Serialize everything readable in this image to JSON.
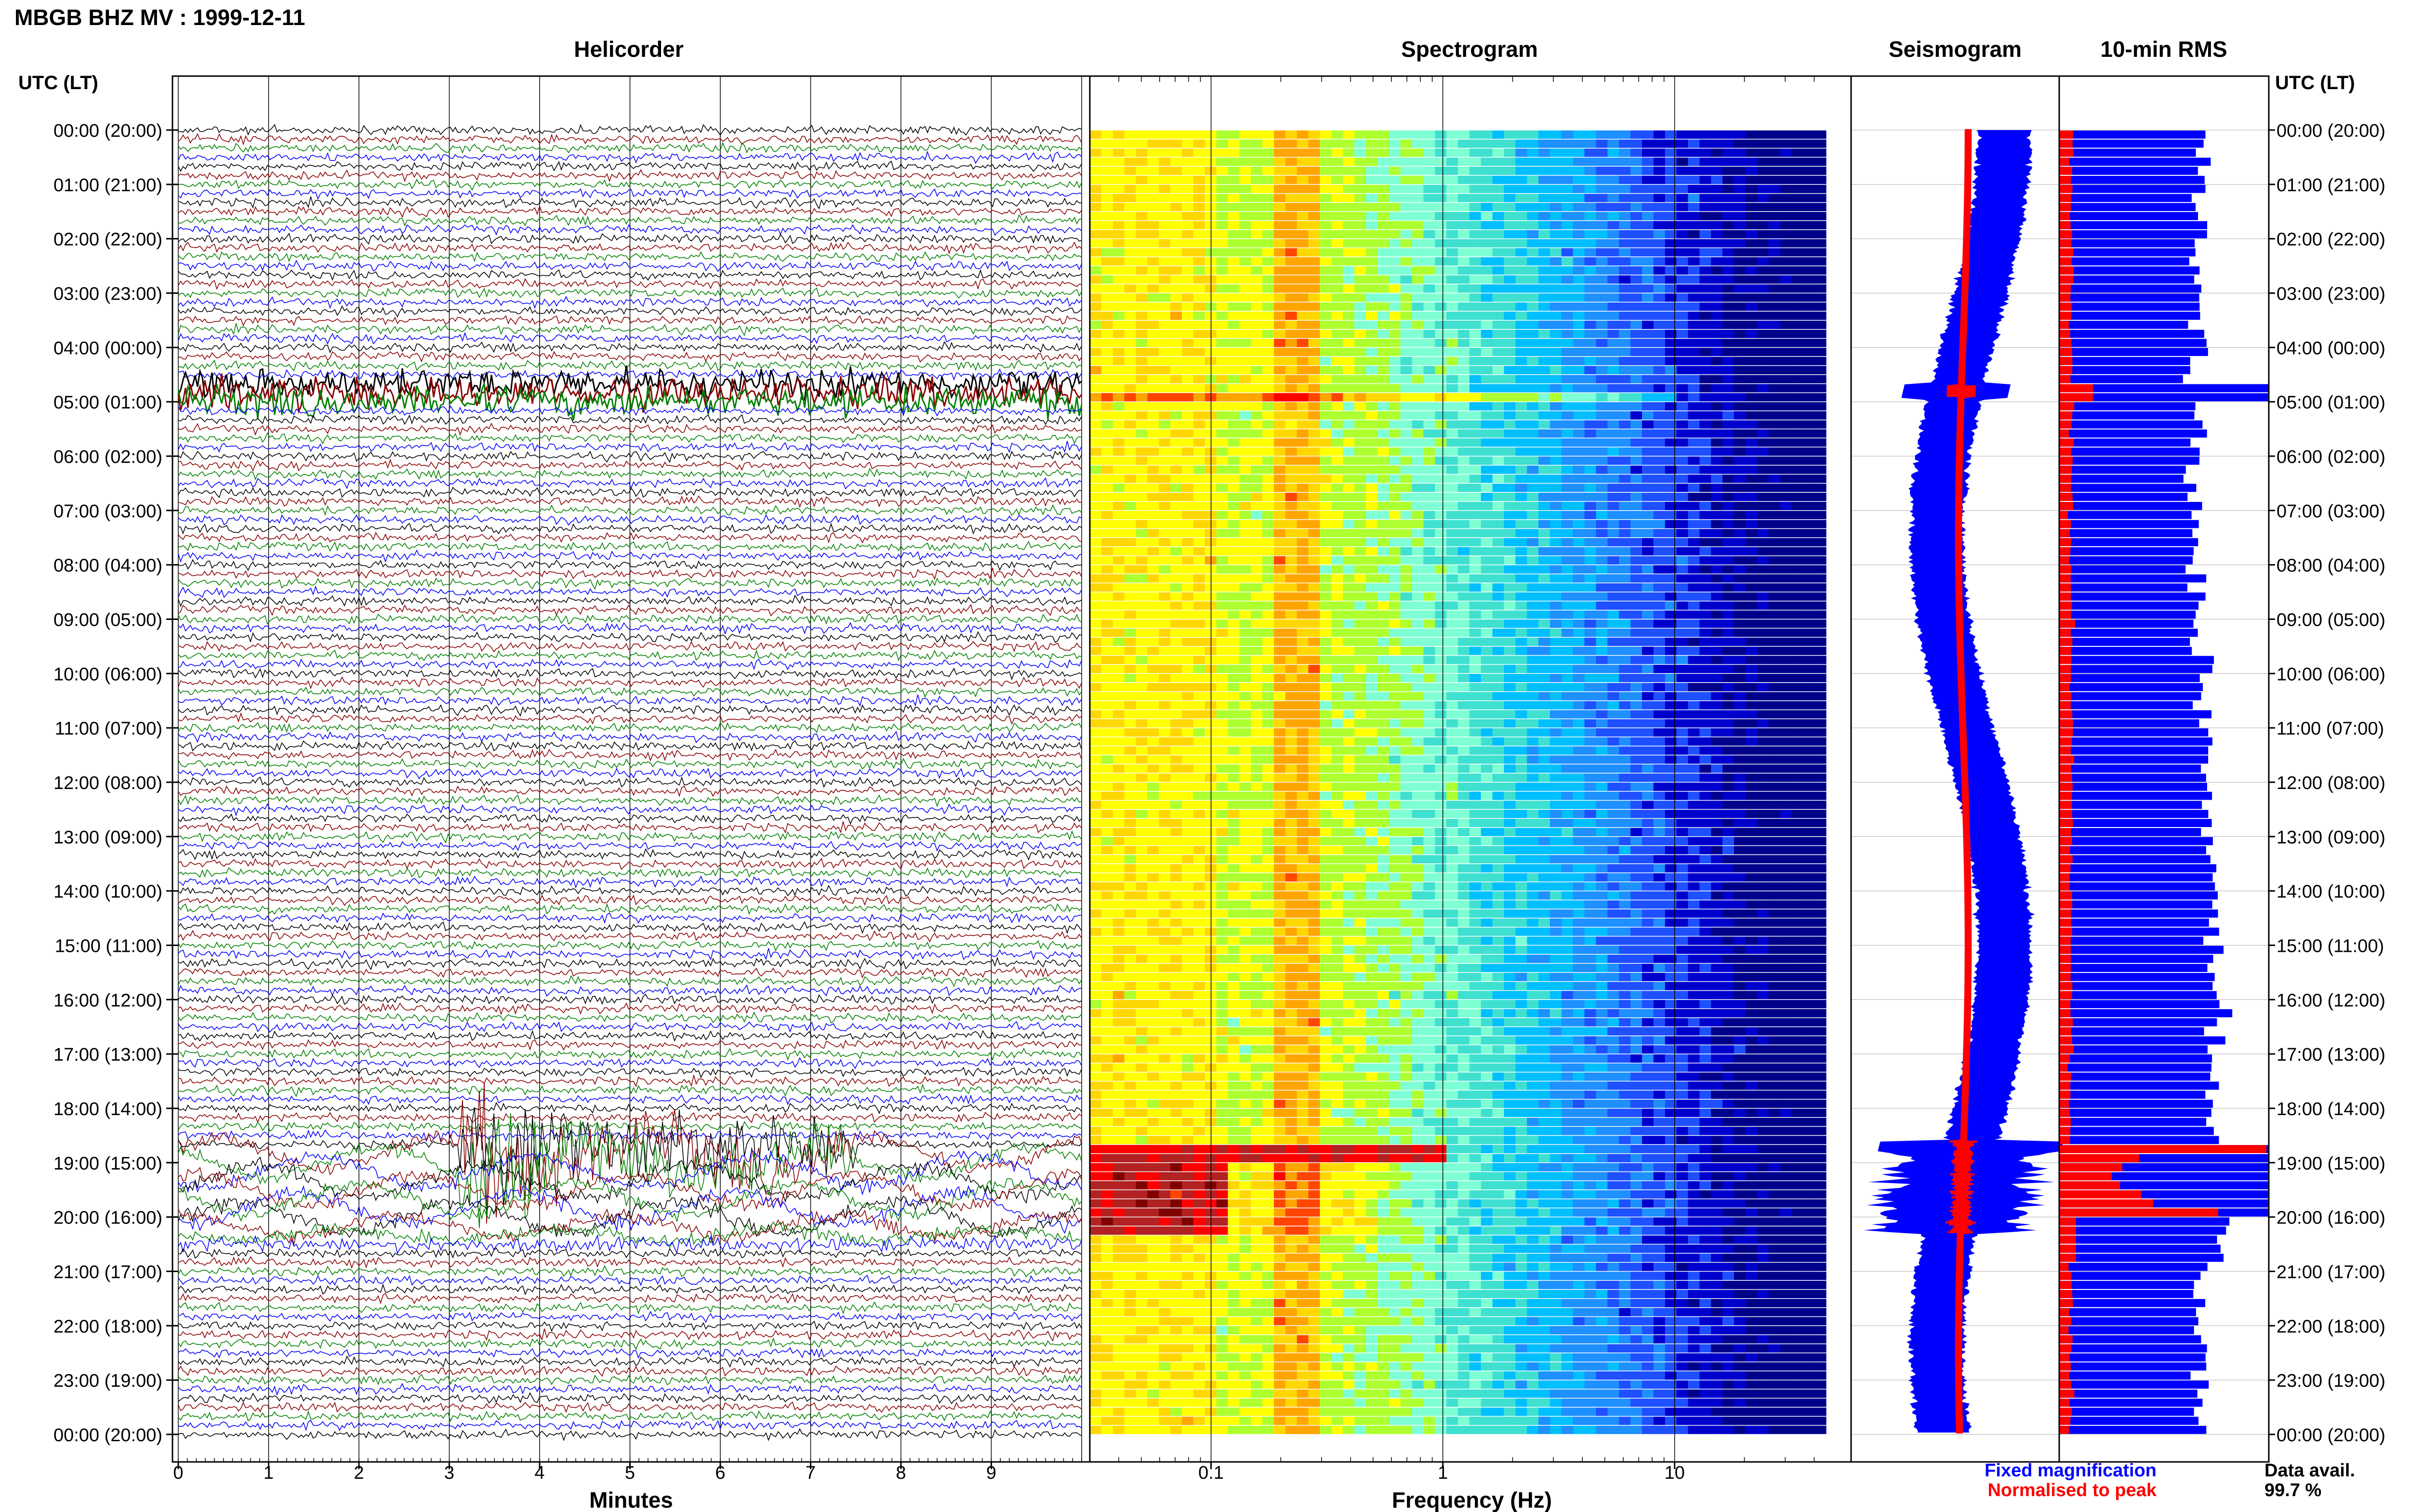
{
  "title": "MBGB BHZ MV : 1999-12-11",
  "panel_titles": {
    "helicorder": "Helicorder",
    "spectrogram": "Spectrogram",
    "seismogram": "Seismogram",
    "rms": "10-min RMS"
  },
  "axis_titles": {
    "left_time": "UTC (LT)",
    "right_time": "UTC (LT)",
    "helicorder_x": "Minutes",
    "spectrogram_x": "Frequency (Hz)"
  },
  "time_labels": [
    "00:00 (20:00)",
    "01:00 (21:00)",
    "02:00 (22:00)",
    "03:00 (23:00)",
    "04:00 (00:00)",
    "05:00 (01:00)",
    "06:00 (02:00)",
    "07:00 (03:00)",
    "08:00 (04:00)",
    "09:00 (05:00)",
    "10:00 (06:00)",
    "11:00 (07:00)",
    "12:00 (08:00)",
    "13:00 (09:00)",
    "14:00 (10:00)",
    "15:00 (11:00)",
    "16:00 (12:00)",
    "17:00 (13:00)",
    "18:00 (14:00)",
    "19:00 (15:00)",
    "20:00 (16:00)",
    "21:00 (17:00)",
    "22:00 (18:00)",
    "23:00 (19:00)",
    "00:00 (20:00)"
  ],
  "legend": {
    "fixed": "Fixed magnification",
    "normalised": "Normalised to peak",
    "fixed_color": "#0000ff",
    "normalised_color": "#ff0000"
  },
  "data_avail": {
    "label": "Data avail.",
    "value": "99.7 %"
  },
  "chart_data": [
    {
      "type": "line",
      "name": "helicorder",
      "title": "Helicorder",
      "xlabel": "Minutes",
      "x_ticks": [
        "0",
        "1",
        "2",
        "3",
        "4",
        "5",
        "6",
        "7",
        "8",
        "9"
      ],
      "xlim": [
        0,
        10
      ],
      "trace_colors": [
        "#000000",
        "#8b0000",
        "#008000",
        "#0000ff"
      ],
      "traces_per_hour": 6,
      "hours": 24,
      "events": [
        {
          "hour": 4.8,
          "type": "tremor-burst"
        },
        {
          "hour": 18.7,
          "type": "large-event",
          "minutes": [
            3.2,
            5.0
          ]
        },
        {
          "hour": 18.8,
          "type": "swell",
          "until_hour": 20.5
        }
      ]
    },
    {
      "type": "heatmap",
      "name": "spectrogram",
      "title": "Spectrogram",
      "xlabel": "Frequency (Hz)",
      "x_scale": "log",
      "xlim": [
        0.03,
        45
      ],
      "x_ticks": [
        "0.1",
        "1",
        "10"
      ],
      "peak_band_hz": [
        0.18,
        0.3
      ],
      "events": [
        {
          "hour": 4.8,
          "to_hz": 10
        },
        {
          "hour": 18.7,
          "to_hz": 1
        }
      ]
    },
    {
      "type": "area",
      "name": "seismogram",
      "title": "Seismogram",
      "series": [
        {
          "name": "Fixed magnification",
          "color": "#0000ff"
        },
        {
          "name": "Normalised to peak",
          "color": "#ff0000"
        }
      ]
    },
    {
      "type": "bar",
      "name": "rms",
      "title": "10-min RMS",
      "series": [
        {
          "name": "Fixed magnification",
          "color": "#0000ff"
        },
        {
          "name": "Normalised to peak",
          "color": "#ff0000"
        }
      ]
    }
  ]
}
